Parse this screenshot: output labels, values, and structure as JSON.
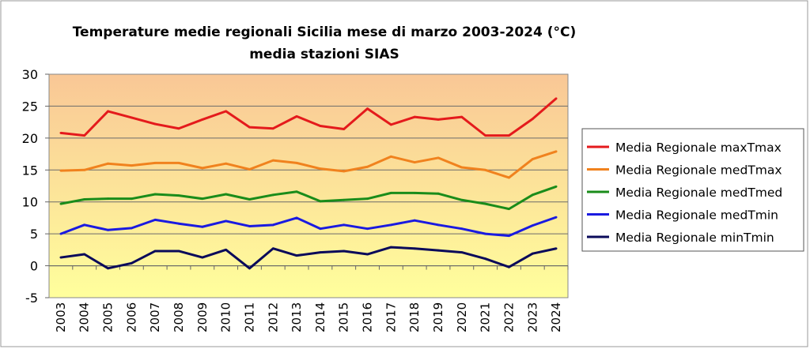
{
  "chart_data": {
    "type": "line",
    "title": "Temperature medie regionali Sicilia mese di marzo 2003-2024 (°C)",
    "subtitle": "media stazioni SIAS",
    "xlabel": "",
    "ylabel": "",
    "ylim": [
      -5,
      30
    ],
    "yticks": [
      "-5",
      "0",
      "5",
      "10",
      "15",
      "20",
      "25",
      "30"
    ],
    "grid": true,
    "legend_position": "right",
    "categories": [
      "2003",
      "2004",
      "2005",
      "2006",
      "2007",
      "2008",
      "2009",
      "2010",
      "2011",
      "2012",
      "2013",
      "2014",
      "2015",
      "2016",
      "2017",
      "2018",
      "2019",
      "2020",
      "2021",
      "2022",
      "2023",
      "2024"
    ],
    "series": [
      {
        "name": "Media Regionale maxTmax",
        "color": "#e41a1c",
        "values": [
          20.8,
          20.4,
          24.2,
          23.2,
          22.2,
          21.5,
          22.9,
          24.2,
          21.7,
          21.5,
          23.4,
          21.9,
          21.4,
          24.6,
          22.1,
          23.3,
          22.9,
          23.3,
          20.4,
          20.4,
          23.0,
          26.2
        ]
      },
      {
        "name": "Media Regionale medTmax",
        "color": "#f0821e",
        "values": [
          14.9,
          15.0,
          16.0,
          15.7,
          16.1,
          16.1,
          15.3,
          16.0,
          15.1,
          16.5,
          16.1,
          15.2,
          14.8,
          15.5,
          17.1,
          16.2,
          16.9,
          15.4,
          15.0,
          13.8,
          16.7,
          17.9
        ]
      },
      {
        "name": "Media Regionale medTmed",
        "color": "#1a8c1a",
        "values": [
          9.7,
          10.4,
          10.5,
          10.5,
          11.2,
          11.0,
          10.5,
          11.2,
          10.4,
          11.1,
          11.6,
          10.1,
          10.3,
          10.5,
          11.4,
          11.4,
          11.3,
          10.3,
          9.7,
          8.9,
          11.1,
          12.4
        ]
      },
      {
        "name": "Media Regionale medTmin",
        "color": "#1a1ae0",
        "values": [
          5.0,
          6.4,
          5.6,
          5.9,
          7.2,
          6.6,
          6.1,
          7.0,
          6.2,
          6.4,
          7.5,
          5.8,
          6.4,
          5.8,
          6.4,
          7.1,
          6.4,
          5.8,
          5.0,
          4.7,
          6.3,
          7.6
        ]
      },
      {
        "name": "Media Regionale minTmin",
        "color": "#0a0a5a",
        "values": [
          1.3,
          1.8,
          -0.4,
          0.4,
          2.3,
          2.3,
          1.3,
          2.5,
          -0.4,
          2.7,
          1.6,
          2.1,
          2.3,
          1.8,
          2.9,
          2.7,
          2.4,
          2.1,
          1.1,
          -0.2,
          1.9,
          2.7
        ]
      }
    ]
  }
}
